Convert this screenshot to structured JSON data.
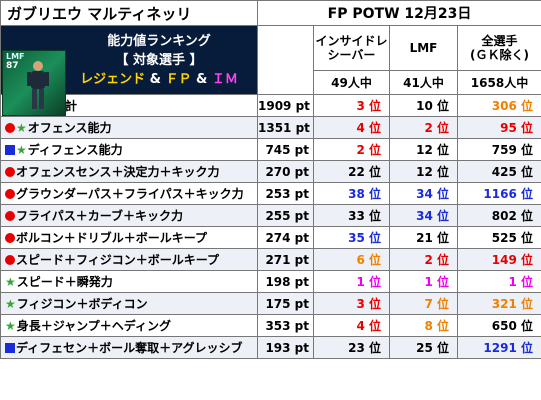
{
  "header": {
    "player_name": "ガブリエウ マルティネッリ",
    "edition": "FP POTW 12月23日",
    "card": {
      "position": "LMF",
      "rating": "87"
    },
    "banner_line1": "能力値ランキング",
    "banner_line2": "【 対象選手 】",
    "banner_line3": [
      {
        "text": "レジェンド",
        "color": "#ffd400"
      },
      {
        "text": " & ",
        "color": "#ffffff"
      },
      {
        "text": "ＦＰ",
        "color": "#ffd400"
      },
      {
        "text": " & ",
        "color": "#ffffff"
      },
      {
        "text": "ＩＭ",
        "color": "#ff44ee"
      }
    ],
    "columns": [
      {
        "label": "インサイドレ\nシーバー",
        "count": "49人中"
      },
      {
        "label": "LMF",
        "count": "41人中"
      },
      {
        "label": "全選手\n(ＧＫ除く)",
        "count": "1658人中"
      }
    ]
  },
  "rows": [
    {
      "marker": "",
      "label": "全能力値合計",
      "value": "1909",
      "unit": "pt",
      "ranks": [
        {
          "n": "3",
          "c": "red"
        },
        {
          "n": "10",
          "c": ""
        },
        {
          "n": "306",
          "c": "orange"
        }
      ]
    },
    {
      "marker": "dot-star",
      "label": "オフェンス能力",
      "value": "1351",
      "unit": "pt",
      "ranks": [
        {
          "n": "4",
          "c": "red"
        },
        {
          "n": "2",
          "c": "red"
        },
        {
          "n": "95",
          "c": "red"
        }
      ]
    },
    {
      "marker": "sq-star",
      "label": "ディフェンス能力",
      "value": "745",
      "unit": "pt",
      "ranks": [
        {
          "n": "2",
          "c": "red"
        },
        {
          "n": "12",
          "c": ""
        },
        {
          "n": "759",
          "c": ""
        }
      ]
    },
    {
      "marker": "dot",
      "label": "オフェンスセンス＋決定力＋キック力",
      "value": "270",
      "unit": "pt",
      "ranks": [
        {
          "n": "22",
          "c": ""
        },
        {
          "n": "12",
          "c": ""
        },
        {
          "n": "425",
          "c": ""
        }
      ]
    },
    {
      "marker": "dot",
      "label": "グラウンダーパス＋フライパス＋キック力",
      "value": "253",
      "unit": "pt",
      "ranks": [
        {
          "n": "38",
          "c": "blue"
        },
        {
          "n": "34",
          "c": "blue"
        },
        {
          "n": "1166",
          "c": "blue"
        }
      ]
    },
    {
      "marker": "dot",
      "label": "フライパス＋カーブ＋キック力",
      "value": "255",
      "unit": "pt",
      "ranks": [
        {
          "n": "33",
          "c": ""
        },
        {
          "n": "34",
          "c": "blue"
        },
        {
          "n": "802",
          "c": ""
        }
      ]
    },
    {
      "marker": "dot",
      "label": "ボルコン＋ドリブル＋ボールキープ",
      "value": "274",
      "unit": "pt",
      "ranks": [
        {
          "n": "35",
          "c": "blue"
        },
        {
          "n": "21",
          "c": ""
        },
        {
          "n": "525",
          "c": ""
        }
      ]
    },
    {
      "marker": "dot",
      "label": "スピード＋フィジコン＋ボールキープ",
      "value": "271",
      "unit": "pt",
      "ranks": [
        {
          "n": "6",
          "c": "orange"
        },
        {
          "n": "2",
          "c": "red"
        },
        {
          "n": "149",
          "c": "red"
        }
      ]
    },
    {
      "marker": "star",
      "label": "スピード＋瞬発力",
      "value": "198",
      "unit": "pt",
      "ranks": [
        {
          "n": "1",
          "c": "magenta"
        },
        {
          "n": "1",
          "c": "magenta"
        },
        {
          "n": "1",
          "c": "magenta"
        }
      ]
    },
    {
      "marker": "star",
      "label": "フィジコン＋ボディコン",
      "value": "175",
      "unit": "pt",
      "ranks": [
        {
          "n": "3",
          "c": "red"
        },
        {
          "n": "7",
          "c": "orange"
        },
        {
          "n": "321",
          "c": "orange"
        }
      ]
    },
    {
      "marker": "star",
      "label": "身長＋ジャンプ＋ヘディング",
      "value": "353",
      "unit": "pt",
      "ranks": [
        {
          "n": "4",
          "c": "red"
        },
        {
          "n": "8",
          "c": "orange"
        },
        {
          "n": "650",
          "c": ""
        }
      ]
    },
    {
      "marker": "sq",
      "label": "ディフェセン＋ボール奪取＋アグレッシブ",
      "value": "193",
      "unit": "pt",
      "ranks": [
        {
          "n": "23",
          "c": ""
        },
        {
          "n": "25",
          "c": ""
        },
        {
          "n": "1291",
          "c": "blue"
        }
      ]
    }
  ],
  "rank_suffix": "位"
}
